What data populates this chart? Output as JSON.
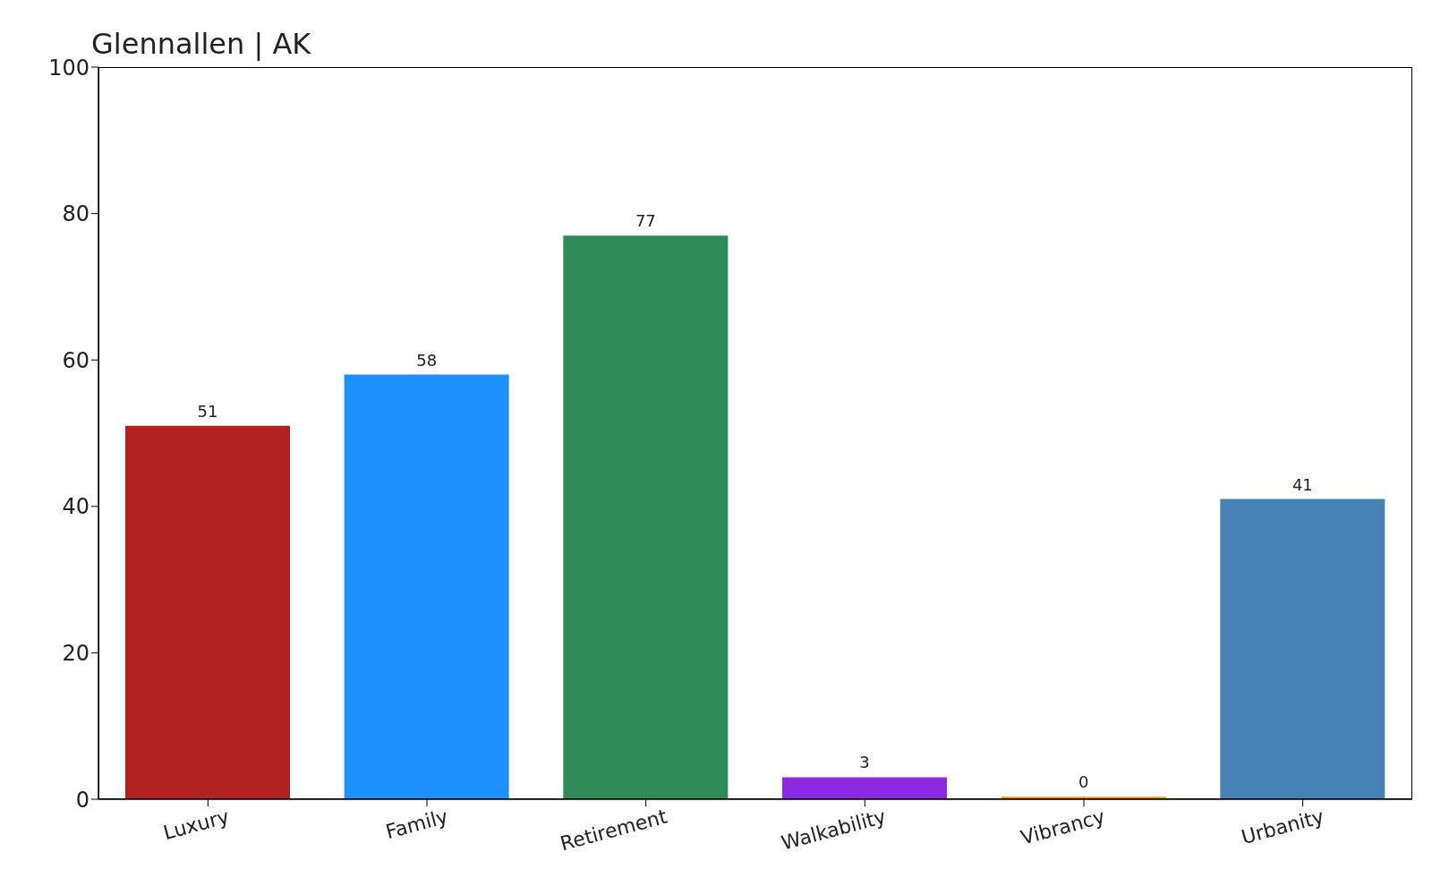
{
  "chart_data": {
    "type": "bar",
    "title": "Glennallen | AK",
    "categories": [
      "Luxury",
      "Family",
      "Retirement",
      "Walkability",
      "Vibrancy",
      "Urbanity"
    ],
    "values": [
      51,
      58,
      77,
      3,
      0,
      41
    ],
    "colors": [
      "#b22222",
      "#1e90ff",
      "#2e8b57",
      "#8a2be2",
      "#ffa500",
      "#4682b4"
    ],
    "ylim": [
      0,
      100
    ],
    "yticks": [
      0,
      20,
      40,
      60,
      80,
      100
    ],
    "data_labels": true,
    "grid": false
  }
}
